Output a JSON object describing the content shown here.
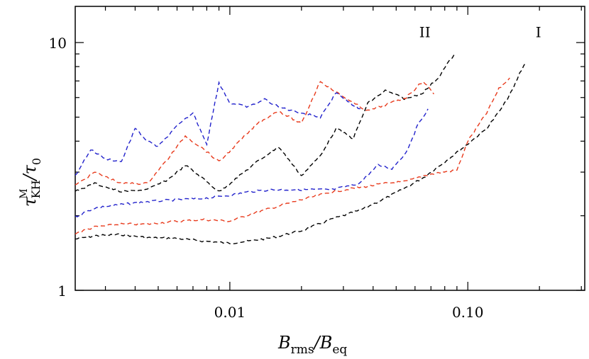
{
  "chart_data": {
    "type": "line",
    "x_scale": "log",
    "y_scale": "log",
    "xlim": [
      0.00224,
      0.31
    ],
    "ylim": [
      1,
      14
    ],
    "x_ticks": [
      {
        "value": 0.01,
        "label": "0.01"
      },
      {
        "value": 0.1,
        "label": "0.10"
      }
    ],
    "y_ticks": [
      {
        "value": 1,
        "label": "1"
      },
      {
        "value": 10,
        "label": "10"
      }
    ],
    "xlabel": {
      "main": "B",
      "sub1": "rms",
      "sep": "/B",
      "sub2": "eq"
    },
    "ylabel": {
      "main": "τ",
      "sup": "M",
      "sub": "KH",
      "sep": "/τ",
      "sub2": "0"
    },
    "annotations": [
      {
        "text": "II",
        "x": 0.066,
        "y": 11.0
      },
      {
        "text": "I",
        "x": 0.198,
        "y": 11.0
      }
    ],
    "grid": false,
    "series": [
      {
        "color": "#000000",
        "points": [
          [
            0.00224,
            1.61
          ],
          [
            0.0027,
            1.66
          ],
          [
            0.0035,
            1.68
          ],
          [
            0.0045,
            1.63
          ],
          [
            0.006,
            1.62
          ],
          [
            0.0078,
            1.58
          ],
          [
            0.01,
            1.55
          ],
          [
            0.012,
            1.58
          ],
          [
            0.015,
            1.63
          ],
          [
            0.02,
            1.74
          ],
          [
            0.027,
            1.94
          ],
          [
            0.035,
            2.1
          ],
          [
            0.045,
            2.35
          ],
          [
            0.055,
            2.6
          ],
          [
            0.065,
            2.85
          ],
          [
            0.08,
            3.3
          ],
          [
            0.1,
            3.9
          ],
          [
            0.12,
            4.5
          ],
          [
            0.14,
            5.5
          ],
          [
            0.155,
            6.5
          ],
          [
            0.165,
            7.5
          ],
          [
            0.175,
            8.3
          ]
        ]
      },
      {
        "color": "#e83a1c",
        "points": [
          [
            0.00224,
            1.7
          ],
          [
            0.0027,
            1.8
          ],
          [
            0.0035,
            1.85
          ],
          [
            0.0045,
            1.85
          ],
          [
            0.006,
            1.9
          ],
          [
            0.0078,
            1.93
          ],
          [
            0.01,
            1.9
          ],
          [
            0.012,
            2.02
          ],
          [
            0.015,
            2.15
          ],
          [
            0.02,
            2.32
          ],
          [
            0.027,
            2.5
          ],
          [
            0.035,
            2.6
          ],
          [
            0.045,
            2.7
          ],
          [
            0.055,
            2.75
          ],
          [
            0.065,
            2.9
          ],
          [
            0.078,
            3.0
          ],
          [
            0.09,
            3.05
          ],
          [
            0.1,
            4.0
          ],
          [
            0.12,
            5.2
          ],
          [
            0.135,
            6.5
          ],
          [
            0.15,
            7.2
          ]
        ]
      },
      {
        "color": "#2222cc",
        "points": [
          [
            0.00224,
            1.98
          ],
          [
            0.0027,
            2.15
          ],
          [
            0.0035,
            2.22
          ],
          [
            0.0045,
            2.28
          ],
          [
            0.006,
            2.32
          ],
          [
            0.0078,
            2.35
          ],
          [
            0.01,
            2.42
          ],
          [
            0.012,
            2.5
          ],
          [
            0.015,
            2.55
          ],
          [
            0.02,
            2.55
          ],
          [
            0.027,
            2.55
          ],
          [
            0.035,
            2.7
          ],
          [
            0.042,
            3.2
          ],
          [
            0.048,
            3.1
          ],
          [
            0.055,
            3.6
          ],
          [
            0.062,
            4.7
          ],
          [
            0.068,
            5.4
          ]
        ]
      },
      {
        "color": "#000000",
        "points": [
          [
            0.00224,
            2.5
          ],
          [
            0.0027,
            2.7
          ],
          [
            0.0035,
            2.5
          ],
          [
            0.0045,
            2.55
          ],
          [
            0.0055,
            2.8
          ],
          [
            0.0065,
            3.2
          ],
          [
            0.0078,
            2.8
          ],
          [
            0.009,
            2.5
          ],
          [
            0.011,
            2.9
          ],
          [
            0.013,
            3.3
          ],
          [
            0.016,
            3.8
          ],
          [
            0.02,
            2.9
          ],
          [
            0.024,
            3.5
          ],
          [
            0.028,
            4.5
          ],
          [
            0.033,
            4.1
          ],
          [
            0.038,
            5.7
          ],
          [
            0.045,
            6.4
          ],
          [
            0.055,
            5.9
          ],
          [
            0.065,
            6.3
          ],
          [
            0.075,
            7.2
          ],
          [
            0.082,
            8.2
          ],
          [
            0.088,
            9.0
          ]
        ]
      },
      {
        "color": "#e83a1c",
        "points": [
          [
            0.00224,
            2.65
          ],
          [
            0.0027,
            3.0
          ],
          [
            0.0035,
            2.7
          ],
          [
            0.0045,
            2.7
          ],
          [
            0.0055,
            3.4
          ],
          [
            0.0065,
            4.2
          ],
          [
            0.0078,
            3.7
          ],
          [
            0.009,
            3.3
          ],
          [
            0.011,
            4.0
          ],
          [
            0.013,
            4.7
          ],
          [
            0.016,
            5.3
          ],
          [
            0.02,
            4.7
          ],
          [
            0.024,
            7.0
          ],
          [
            0.028,
            6.3
          ],
          [
            0.033,
            5.7
          ],
          [
            0.038,
            5.3
          ],
          [
            0.045,
            5.6
          ],
          [
            0.055,
            6.0
          ],
          [
            0.065,
            7.0
          ],
          [
            0.072,
            6.2
          ]
        ]
      },
      {
        "color": "#2222cc",
        "points": [
          [
            0.00224,
            2.9
          ],
          [
            0.0026,
            3.7
          ],
          [
            0.003,
            3.4
          ],
          [
            0.0035,
            3.3
          ],
          [
            0.004,
            4.5
          ],
          [
            0.0045,
            4.0
          ],
          [
            0.005,
            3.8
          ],
          [
            0.006,
            4.6
          ],
          [
            0.007,
            5.2
          ],
          [
            0.008,
            3.9
          ],
          [
            0.009,
            6.9
          ],
          [
            0.01,
            5.7
          ],
          [
            0.012,
            5.5
          ],
          [
            0.014,
            5.9
          ],
          [
            0.016,
            5.5
          ],
          [
            0.02,
            5.2
          ],
          [
            0.024,
            5.0
          ],
          [
            0.028,
            6.3
          ],
          [
            0.032,
            5.7
          ],
          [
            0.036,
            5.3
          ]
        ]
      }
    ]
  }
}
